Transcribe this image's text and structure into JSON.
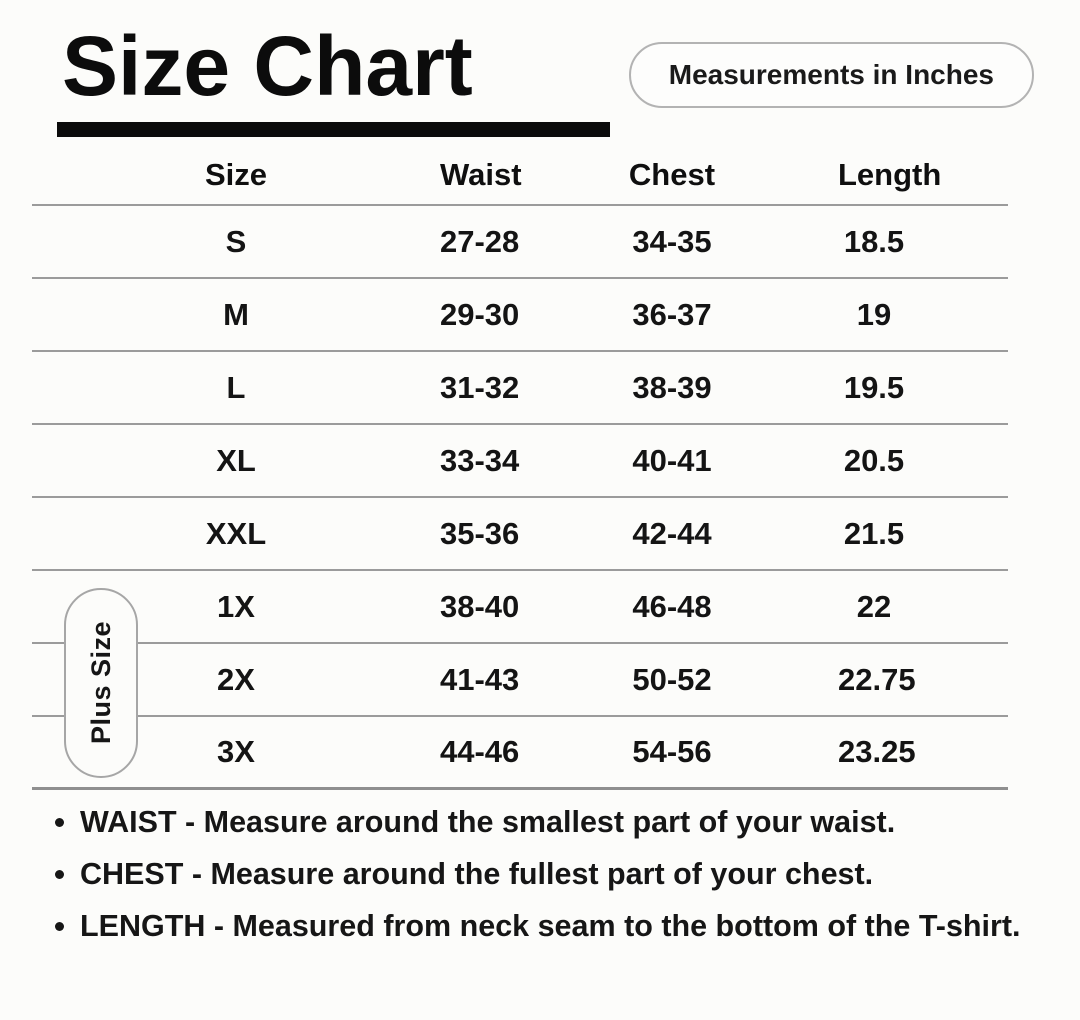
{
  "header": {
    "title": "Size Chart",
    "badge_label": "Measurements in Inches"
  },
  "chart_data": {
    "type": "table",
    "title": "Size Chart",
    "units": "inches",
    "columns": [
      "Size",
      "Waist",
      "Chest",
      "Length"
    ],
    "rows": [
      [
        "S",
        "27-28",
        "34-35",
        "18.5"
      ],
      [
        "M",
        "29-30",
        "36-37",
        "19"
      ],
      [
        "L",
        "31-32",
        "38-39",
        "19.5"
      ],
      [
        "XL",
        "33-34",
        "40-41",
        "20.5"
      ],
      [
        "XXL",
        "35-36",
        "42-44",
        "21.5"
      ],
      [
        "1X",
        "38-40",
        "46-48",
        "22"
      ],
      [
        "2X",
        "41-43",
        "50-52",
        "22.75"
      ],
      [
        "3X",
        "44-46",
        "54-56",
        "23.25"
      ]
    ],
    "row_group_label": "Plus Size",
    "row_group_applies_to": [
      "1X",
      "2X",
      "3X"
    ]
  },
  "notes": {
    "items": [
      "WAIST - Measure around the smallest part of your waist.",
      "CHEST - Measure around the fullest part of your chest.",
      "LENGTH - Measured from neck seam to the bottom of the T-shirt."
    ]
  },
  "colors": {
    "background": "#fcfcfa",
    "text": "#111111",
    "divider": "#9b9b9b",
    "title_bar": "#0b0b0b",
    "badge_border": "#b3b3b3",
    "pill_border": "#a6a6a6"
  }
}
